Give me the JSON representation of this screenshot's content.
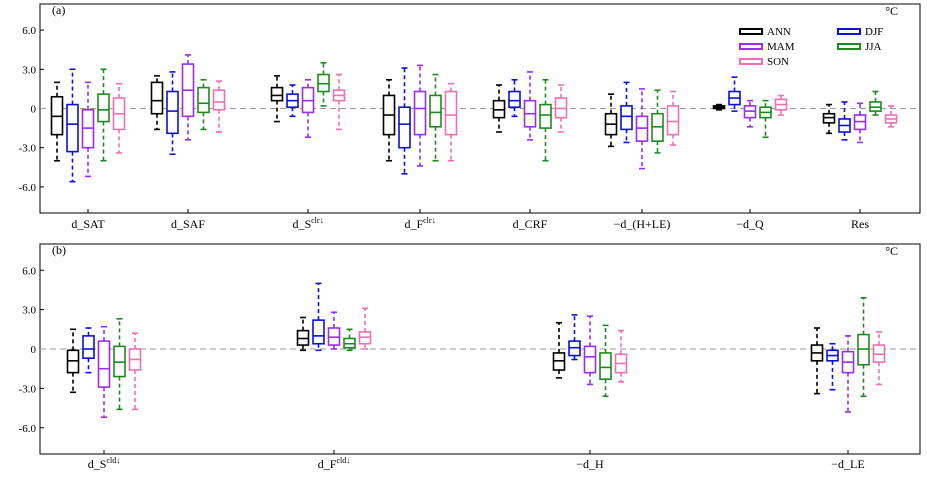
{
  "legend": [
    {
      "label": "ANN",
      "color": "#000000"
    },
    {
      "label": "DJF",
      "color": "#0a12d8"
    },
    {
      "label": "MAM",
      "color": "#9b2cf0"
    },
    {
      "label": "JJA",
      "color": "#1e8a1e"
    },
    {
      "label": "SON",
      "color": "#f06fb4"
    }
  ],
  "chart_data": [
    {
      "type": "box",
      "panel_label": "(a)",
      "unit": "°C",
      "ylim": [
        -8,
        8
      ],
      "yticks": [
        6,
        3,
        0,
        -3,
        -6
      ],
      "ytick_labels": [
        "6.0",
        "3.0",
        "0",
        "-3.0",
        "-6.0"
      ],
      "zero_line": true,
      "categories": [
        {
          "label": "d_SAT",
          "sup": ""
        },
        {
          "label": "d_SAF",
          "sup": ""
        },
        {
          "label": "d_S",
          "sup": "clr↓"
        },
        {
          "label": "d_F",
          "sup": "clr↓"
        },
        {
          "label": "d_CRF",
          "sup": ""
        },
        {
          "label": "−d_(H+LE)",
          "sup": ""
        },
        {
          "label": "−d_Q",
          "sup": ""
        },
        {
          "label": "Res",
          "sup": ""
        }
      ],
      "series": [
        {
          "name": "ANN",
          "boxes": [
            {
              "min": -4.0,
              "q1": -2.0,
              "median": -0.6,
              "q3": 0.9,
              "max": 2.0
            },
            {
              "min": -1.6,
              "q1": -0.4,
              "median": 0.6,
              "q3": 2.0,
              "max": 2.5
            },
            {
              "min": -1.0,
              "q1": 0.6,
              "median": 1.0,
              "q3": 1.6,
              "max": 2.5
            },
            {
              "min": -4.0,
              "q1": -2.0,
              "median": -0.5,
              "q3": 1.0,
              "max": 2.2
            },
            {
              "min": -1.8,
              "q1": -0.7,
              "median": -0.1,
              "q3": 0.6,
              "max": 1.8
            },
            {
              "min": -2.9,
              "q1": -2.0,
              "median": -1.2,
              "q3": -0.4,
              "max": 1.1
            },
            {
              "min": -0.1,
              "q1": 0.0,
              "median": 0.1,
              "q3": 0.2,
              "max": 0.3
            },
            {
              "min": -1.9,
              "q1": -1.1,
              "median": -0.7,
              "q3": -0.4,
              "max": 0.3
            }
          ]
        },
        {
          "name": "DJF",
          "boxes": [
            {
              "min": -5.6,
              "q1": -3.3,
              "median": -1.2,
              "q3": 0.3,
              "max": 3.0
            },
            {
              "min": -3.5,
              "q1": -1.9,
              "median": -0.2,
              "q3": 1.3,
              "max": 2.8
            },
            {
              "min": -0.6,
              "q1": 0.1,
              "median": 0.6,
              "q3": 1.1,
              "max": 1.8
            },
            {
              "min": -5.0,
              "q1": -3.0,
              "median": -1.2,
              "q3": 0.1,
              "max": 3.1
            },
            {
              "min": -0.6,
              "q1": 0.1,
              "median": 0.6,
              "q3": 1.3,
              "max": 2.2
            },
            {
              "min": -2.6,
              "q1": -1.6,
              "median": -0.6,
              "q3": 0.2,
              "max": 2.0
            },
            {
              "min": -0.2,
              "q1": 0.3,
              "median": 0.8,
              "q3": 1.3,
              "max": 2.4
            },
            {
              "min": -2.4,
              "q1": -1.8,
              "median": -1.3,
              "q3": -0.8,
              "max": 0.5
            }
          ]
        },
        {
          "name": "MAM",
          "boxes": [
            {
              "min": -5.2,
              "q1": -3.0,
              "median": -1.5,
              "q3": -0.1,
              "max": 2.0
            },
            {
              "min": -2.4,
              "q1": -0.6,
              "median": 1.4,
              "q3": 3.4,
              "max": 4.1
            },
            {
              "min": -2.2,
              "q1": -0.3,
              "median": 0.6,
              "q3": 1.6,
              "max": 2.2
            },
            {
              "min": -4.4,
              "q1": -2.0,
              "median": 0.0,
              "q3": 1.3,
              "max": 3.3
            },
            {
              "min": -2.4,
              "q1": -1.4,
              "median": -0.4,
              "q3": 0.6,
              "max": 2.8
            },
            {
              "min": -4.6,
              "q1": -2.5,
              "median": -1.5,
              "q3": -0.6,
              "max": 1.5
            },
            {
              "min": -1.4,
              "q1": -0.7,
              "median": -0.2,
              "q3": 0.2,
              "max": 0.6
            },
            {
              "min": -2.6,
              "q1": -1.6,
              "median": -1.0,
              "q3": -0.5,
              "max": 0.4
            }
          ]
        },
        {
          "name": "JJA",
          "boxes": [
            {
              "min": -4.0,
              "q1": -1.0,
              "median": -0.1,
              "q3": 1.1,
              "max": 3.0
            },
            {
              "min": -1.6,
              "q1": -0.3,
              "median": 0.4,
              "q3": 1.6,
              "max": 2.2
            },
            {
              "min": 0.2,
              "q1": 1.3,
              "median": 1.9,
              "q3": 2.6,
              "max": 3.5
            },
            {
              "min": -4.0,
              "q1": -1.4,
              "median": -0.3,
              "q3": 1.0,
              "max": 2.6
            },
            {
              "min": -4.0,
              "q1": -1.5,
              "median": -0.5,
              "q3": 0.3,
              "max": 2.2
            },
            {
              "min": -3.4,
              "q1": -2.5,
              "median": -1.4,
              "q3": -0.4,
              "max": 1.4
            },
            {
              "min": -2.2,
              "q1": -0.7,
              "median": -0.3,
              "q3": 0.1,
              "max": 0.6
            },
            {
              "min": -0.5,
              "q1": -0.2,
              "median": 0.1,
              "q3": 0.5,
              "max": 1.3
            }
          ]
        },
        {
          "name": "SON",
          "boxes": [
            {
              "min": -3.4,
              "q1": -1.6,
              "median": -0.4,
              "q3": 0.8,
              "max": 1.9
            },
            {
              "min": -1.8,
              "q1": -0.1,
              "median": 0.5,
              "q3": 1.4,
              "max": 2.1
            },
            {
              "min": -1.6,
              "q1": 0.6,
              "median": 1.0,
              "q3": 1.4,
              "max": 2.6
            },
            {
              "min": -4.0,
              "q1": -2.0,
              "median": -0.5,
              "q3": 1.3,
              "max": 1.9
            },
            {
              "min": -1.8,
              "q1": -0.7,
              "median": 0.0,
              "q3": 0.8,
              "max": 1.8
            },
            {
              "min": -2.8,
              "q1": -2.0,
              "median": -1.0,
              "q3": 0.2,
              "max": 1.3
            },
            {
              "min": -0.5,
              "q1": -0.1,
              "median": 0.3,
              "q3": 0.7,
              "max": 1.0
            },
            {
              "min": -1.4,
              "q1": -1.1,
              "median": -0.8,
              "q3": -0.5,
              "max": 0.2
            }
          ]
        }
      ]
    },
    {
      "type": "box",
      "panel_label": "(b)",
      "unit": "°C",
      "ylim": [
        -8,
        8
      ],
      "yticks": [
        6,
        3,
        0,
        -3,
        -6
      ],
      "ytick_labels": [
        "6.0",
        "3.0",
        "0",
        "-3.0",
        "-6.0"
      ],
      "zero_line": true,
      "categories": [
        {
          "label": "d_S",
          "sup": "cld↓"
        },
        {
          "label": "d_F",
          "sup": "cld↓"
        },
        {
          "label": "−d_H",
          "sup": ""
        },
        {
          "label": "−d_LE",
          "sup": ""
        }
      ],
      "series": [
        {
          "name": "ANN",
          "boxes": [
            {
              "min": -3.3,
              "q1": -1.8,
              "median": -0.9,
              "q3": -0.1,
              "max": 1.5
            },
            {
              "min": -0.1,
              "q1": 0.3,
              "median": 0.8,
              "q3": 1.4,
              "max": 2.4
            },
            {
              "min": -2.2,
              "q1": -1.6,
              "median": -0.9,
              "q3": -0.3,
              "max": 2.0
            },
            {
              "min": -3.4,
              "q1": -0.9,
              "median": -0.3,
              "q3": 0.3,
              "max": 1.6
            }
          ]
        },
        {
          "name": "DJF",
          "boxes": [
            {
              "min": -1.8,
              "q1": -0.7,
              "median": 0.0,
              "q3": 1.0,
              "max": 1.6
            },
            {
              "min": -0.1,
              "q1": 0.4,
              "median": 1.0,
              "q3": 2.2,
              "max": 5.0
            },
            {
              "min": -0.8,
              "q1": -0.5,
              "median": 0.1,
              "q3": 0.6,
              "max": 2.6
            },
            {
              "min": -3.1,
              "q1": -0.9,
              "median": -0.5,
              "q3": -0.1,
              "max": 0.4
            }
          ]
        },
        {
          "name": "MAM",
          "boxes": [
            {
              "min": -5.2,
              "q1": -2.9,
              "median": -1.5,
              "q3": 0.6,
              "max": 1.7
            },
            {
              "min": 0.0,
              "q1": 0.3,
              "median": 0.9,
              "q3": 1.6,
              "max": 2.8
            },
            {
              "min": -2.7,
              "q1": -1.8,
              "median": -0.6,
              "q3": 0.2,
              "max": 2.5
            },
            {
              "min": -4.8,
              "q1": -1.8,
              "median": -1.0,
              "q3": -0.2,
              "max": 1.0
            }
          ]
        },
        {
          "name": "JJA",
          "boxes": [
            {
              "min": -4.6,
              "q1": -2.1,
              "median": -1.0,
              "q3": 0.2,
              "max": 2.3
            },
            {
              "min": -0.1,
              "q1": 0.1,
              "median": 0.4,
              "q3": 0.8,
              "max": 1.5
            },
            {
              "min": -3.6,
              "q1": -2.3,
              "median": -1.4,
              "q3": -0.3,
              "max": 1.8
            },
            {
              "min": -3.6,
              "q1": -1.2,
              "median": 0.0,
              "q3": 1.1,
              "max": 3.9
            }
          ]
        },
        {
          "name": "SON",
          "boxes": [
            {
              "min": -4.6,
              "q1": -1.6,
              "median": -0.8,
              "q3": 0.0,
              "max": 1.2
            },
            {
              "min": 0.0,
              "q1": 0.4,
              "median": 0.9,
              "q3": 1.3,
              "max": 3.1
            },
            {
              "min": -2.5,
              "q1": -1.8,
              "median": -1.1,
              "q3": -0.4,
              "max": 1.4
            },
            {
              "min": -2.7,
              "q1": -1.0,
              "median": -0.4,
              "q3": 0.3,
              "max": 1.3
            }
          ]
        }
      ]
    }
  ]
}
